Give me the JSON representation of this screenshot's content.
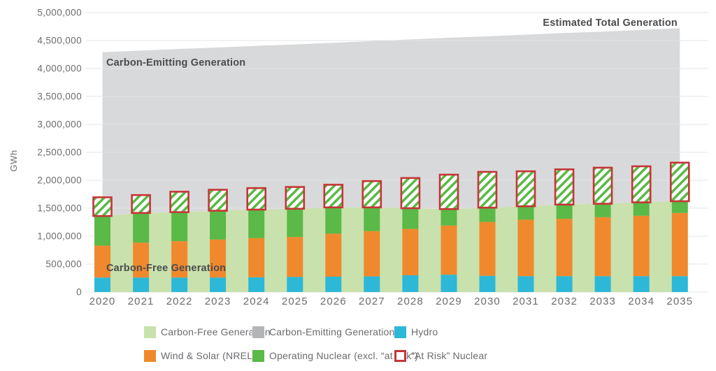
{
  "chart_data": {
    "type": "bar",
    "subtype": "stacked-bars-with-background-areas",
    "ylabel": "GWh",
    "ylim": [
      0,
      5000000
    ],
    "ytick_step": 500000,
    "ytick_labels": [
      "0",
      "500,000",
      "1,000,000",
      "1,500,000",
      "2,000,000",
      "2,500,000",
      "3,000,000",
      "3,500,000",
      "4,000,000",
      "4,500,000",
      "5,000,000"
    ],
    "categories": [
      "2020",
      "2021",
      "2022",
      "2023",
      "2024",
      "2025",
      "2026",
      "2027",
      "2028",
      "2029",
      "2030",
      "2031",
      "2032",
      "2033",
      "2034",
      "2035"
    ],
    "bar_series": [
      {
        "name": "Hydro",
        "color": "#2db8d8",
        "values": [
          260000,
          260000,
          260000,
          260000,
          265000,
          270000,
          275000,
          280000,
          300000,
          310000,
          290000,
          285000,
          285000,
          285000,
          285000,
          285000
        ]
      },
      {
        "name": "Wind & Solar (NREL)",
        "color": "#f0892d",
        "values": [
          570000,
          625000,
          650000,
          680000,
          700000,
          715000,
          770000,
          810000,
          830000,
          880000,
          965000,
          1010000,
          1025000,
          1055000,
          1080000,
          1130000
        ]
      },
      {
        "name": "Operating Nuclear (excl. “at risk”)",
        "color": "#5bb947",
        "values": [
          530000,
          530000,
          520000,
          515000,
          510000,
          505000,
          470000,
          425000,
          370000,
          295000,
          255000,
          240000,
          255000,
          240000,
          240000,
          210000
        ]
      },
      {
        "name": "“At Risk” Nuclear",
        "style": "white-box-red-outline-green-hatch",
        "outline_color": "#c63537",
        "hatch_color": "#5bb947",
        "values": [
          335000,
          320000,
          365000,
          375000,
          385000,
          390000,
          405000,
          470000,
          540000,
          615000,
          640000,
          625000,
          630000,
          645000,
          645000,
          690000
        ]
      }
    ],
    "area_series": [
      {
        "name": "Carbon-Free Generation",
        "color": "#c9e1ac",
        "values": [
          1360000,
          1415000,
          1430000,
          1455000,
          1475000,
          1490000,
          1515000,
          1515000,
          1500000,
          1485000,
          1510000,
          1535000,
          1565000,
          1580000,
          1605000,
          1625000
        ]
      },
      {
        "name": "Carbon-Emitting Generation",
        "color": "#d8d9da",
        "top_values": [
          4290000,
          4320000,
          4350000,
          4375000,
          4405000,
          4430000,
          4460000,
          4490000,
          4520000,
          4550000,
          4575000,
          4605000,
          4635000,
          4660000,
          4690000,
          4720000
        ]
      }
    ],
    "annotations": {
      "carbon_emitting": "Carbon-Emitting Generation",
      "carbon_free": "Carbon-Free Generation",
      "estimated_total": "Estimated Total Generation"
    },
    "legend_position": "bottom",
    "grid": "horizontal"
  },
  "legend": {
    "rows": [
      [
        {
          "label": "Carbon-Free Generation",
          "swatch": "#c9e1ac",
          "kind": "fill"
        },
        {
          "label": "Carbon-Emitting Generation",
          "swatch": "#b4b5b7",
          "kind": "fill"
        },
        {
          "label": "Hydro",
          "swatch": "#2db8d8",
          "kind": "fill"
        }
      ],
      [
        {
          "label": "Wind & Solar (NREL)",
          "swatch": "#f0892d",
          "kind": "fill"
        },
        {
          "label": "Operating Nuclear (excl. “at risk”)",
          "swatch": "#5bb947",
          "kind": "fill"
        },
        {
          "label": "“At Risk” Nuclear",
          "swatch": "#c63537",
          "kind": "outline"
        }
      ]
    ]
  }
}
